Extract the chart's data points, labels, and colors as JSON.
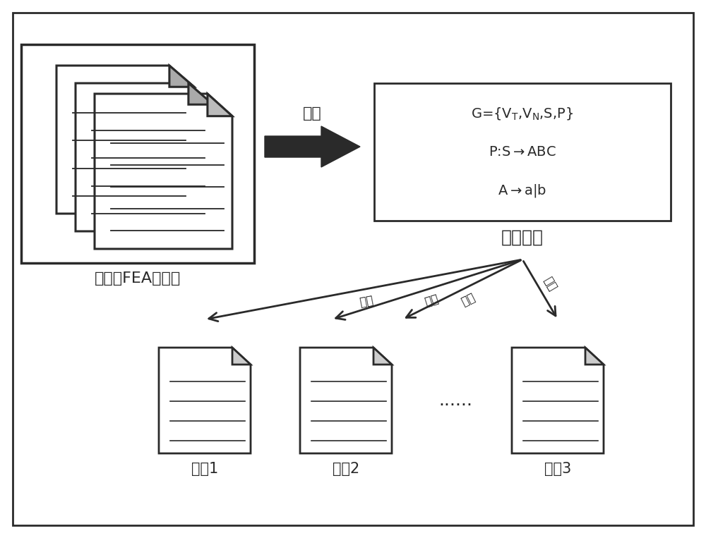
{
  "bg_color": "#ffffff",
  "dark_color": "#2a2a2a",
  "fig_width": 10.0,
  "fig_height": 7.63,
  "label_library": "产品族FEA脚本库",
  "label_rules": "组成规则",
  "label_extract": "提取",
  "label_derive": "推导",
  "label_script1": "脚本1",
  "label_script2": "脚本2",
  "label_script3": "脚本3",
  "label_dots": "......",
  "gram_line1": "G={V",
  "gram_line1_sub1": "T",
  "gram_line1_mid": ",V",
  "gram_line1_sub2": "N",
  "gram_line1_end": ",S,P}",
  "gram_line2": "P:S→ABC",
  "gram_line3": "A→a|b"
}
